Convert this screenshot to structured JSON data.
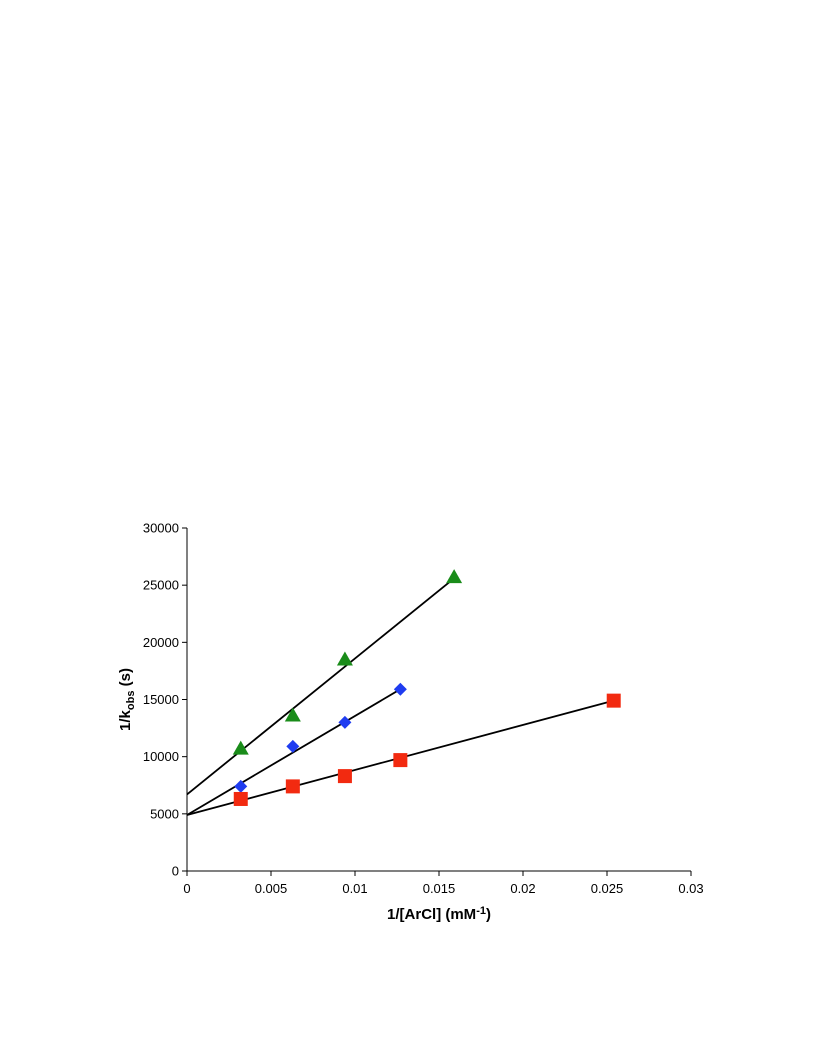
{
  "chart_data": {
    "type": "scatter",
    "title": "",
    "xlabel": "1/[ArCl] (mM-1)",
    "xlabel_parts": {
      "main": "1/[ArCl] (mM",
      "sup": "-1",
      "tail": ")"
    },
    "ylabel": "1/kobs (s)",
    "ylabel_parts": {
      "pre": "1/k",
      "sub": "obs",
      "post": " (s)"
    },
    "xlim": [
      0,
      0.03
    ],
    "ylim": [
      0,
      30000
    ],
    "xticks": [
      0,
      0.005,
      0.01,
      0.015,
      0.02,
      0.025,
      0.03
    ],
    "xtick_labels": [
      "0",
      "0.005",
      "0.01",
      "0.015",
      "0.02",
      "0.025",
      "0.03"
    ],
    "yticks": [
      0,
      5000,
      10000,
      15000,
      20000,
      25000,
      30000
    ],
    "ytick_labels": [
      "0",
      "5000",
      "10000",
      "15000",
      "20000",
      "25000",
      "30000"
    ],
    "grid": false,
    "legend": "none",
    "series": [
      {
        "marker": "triangle",
        "color": "#1a8c1a",
        "x": [
          0.0032,
          0.0063,
          0.0094,
          0.0159
        ],
        "y": [
          10700,
          13600,
          18500,
          25700
        ],
        "fit": {
          "x": [
            0,
            0.0159
          ],
          "y": [
            6700,
            25600
          ]
        }
      },
      {
        "marker": "diamond",
        "color": "#1f3cf0",
        "x": [
          0.0032,
          0.0063,
          0.0094,
          0.0127
        ],
        "y": [
          7400,
          10900,
          13000,
          15900
        ],
        "fit": {
          "x": [
            0,
            0.0127
          ],
          "y": [
            4900,
            15900
          ]
        }
      },
      {
        "marker": "square",
        "color": "#f22a10",
        "x": [
          0.0032,
          0.0063,
          0.0094,
          0.0127,
          0.0254
        ],
        "y": [
          6300,
          7400,
          8300,
          9700,
          14900
        ],
        "fit": {
          "x": [
            0,
            0.0254
          ],
          "y": [
            4900,
            14900
          ]
        }
      }
    ]
  }
}
